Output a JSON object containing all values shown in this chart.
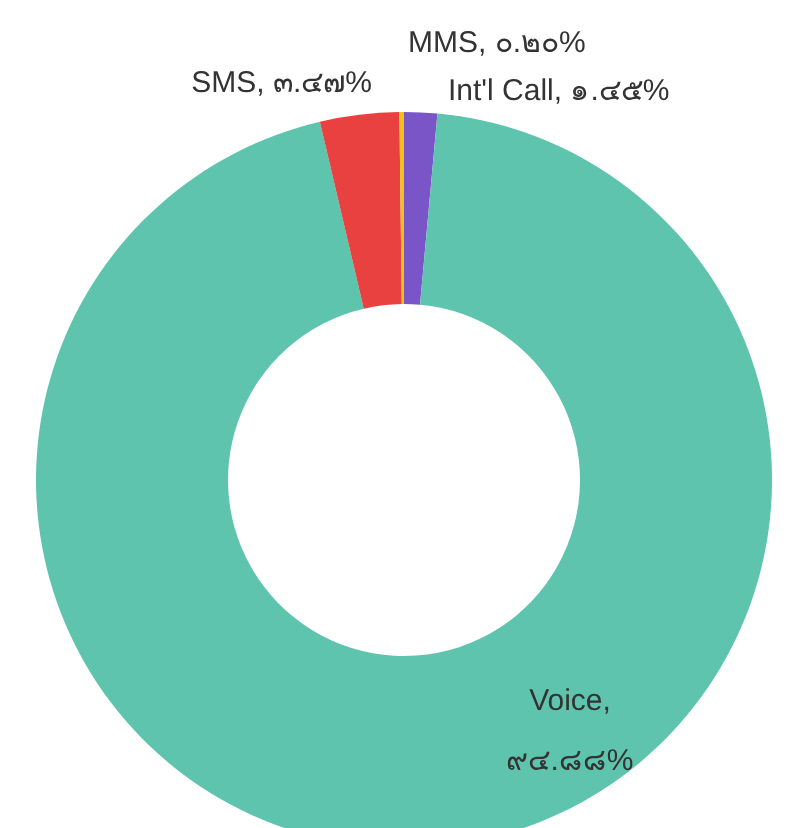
{
  "chart_data": {
    "type": "donut",
    "categories": [
      "Int'l Call, ๑.๔๕%",
      "Voice, ๙๔.๘๘%",
      "SMS, ๓.๔๗%",
      "MMS, ๐.๒๐%"
    ],
    "values": [
      1.45,
      94.88,
      3.47,
      0.2
    ],
    "colors": [
      "#7a55c8",
      "#5ec4ad",
      "#e8413f",
      "#f2c21b"
    ]
  }
}
